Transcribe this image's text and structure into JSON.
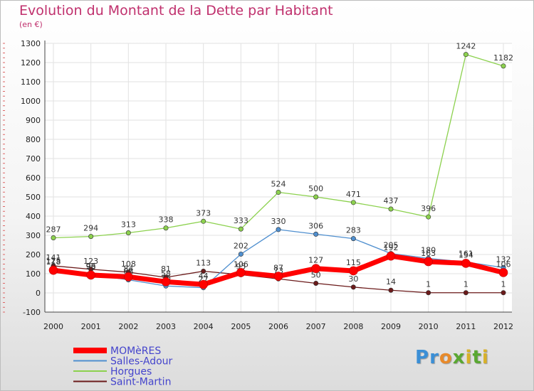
{
  "title": "Evolution du Montant de la Dette par Habitant",
  "subtitle": "(en €)",
  "logo": {
    "letters": [
      {
        "ch": "P",
        "color": "#3b8fd6"
      },
      {
        "ch": "r",
        "color": "#3b8fd6"
      },
      {
        "ch": "o",
        "color": "#e88a2a"
      },
      {
        "ch": "x",
        "color": "#5aa832"
      },
      {
        "ch": "i",
        "color": "#d8b12a"
      },
      {
        "ch": "t",
        "color": "#5aa832"
      },
      {
        "ch": "i",
        "color": "#d8b12a"
      }
    ]
  },
  "chart_data": {
    "type": "line",
    "title": "Evolution du Montant de la Dette par Habitant",
    "ylabel": "(en €)",
    "ylim": [
      -100,
      1300
    ],
    "yticks": [
      -100,
      0,
      100,
      200,
      300,
      400,
      500,
      600,
      700,
      800,
      900,
      1000,
      1100,
      1200,
      1300
    ],
    "x": [
      "2000",
      "2001",
      "2002",
      "2003",
      "2004",
      "2005",
      "2006",
      "2007",
      "2008",
      "2009",
      "2010",
      "2011",
      "2012"
    ],
    "grid": true,
    "legend": "bottom-left",
    "series": [
      {
        "name": "Saint-Martin",
        "color": "#6b1a1a",
        "width": 1.3,
        "values": [
          141,
          123,
          108,
          81,
          113,
          95,
          73,
          50,
          30,
          14,
          1,
          1,
          1
        ],
        "labels": [
          "141",
          "123",
          "108",
          "81",
          "113",
          "95",
          "73",
          "50",
          "30",
          "14",
          "1",
          "1",
          "1"
        ]
      },
      {
        "name": "Horgues",
        "color": "#8cd14e",
        "width": 1.3,
        "values": [
          287,
          294,
          313,
          338,
          373,
          333,
          524,
          500,
          471,
          437,
          396,
          1242,
          1182
        ],
        "labels": [
          "287",
          "294",
          "313",
          "338",
          "373",
          "333",
          "524",
          "500",
          "471",
          "437",
          "396",
          "1242",
          "1182"
        ]
      },
      {
        "name": "Salles-Adour",
        "color": "#4f8fcf",
        "width": 1.3,
        "values": [
          125,
          96,
          68,
          36,
          27,
          202,
          330,
          306,
          283,
          205,
          180,
          161,
          132
        ],
        "labels": [
          "125",
          "96",
          "68",
          "36",
          "27",
          "202",
          "330",
          "306",
          "283",
          "205",
          "180",
          "161",
          "132"
        ]
      },
      {
        "name": "MOMèRES",
        "color": "#ff0000",
        "width": 7,
        "values": [
          118,
          93,
          84,
          58,
          44,
          106,
          87,
          127,
          115,
          192,
          163,
          154,
          106
        ],
        "labels": [
          "118",
          "93",
          "84",
          "58",
          "44",
          "106",
          "87",
          "127",
          "115",
          "192",
          "163",
          "154",
          "106"
        ]
      }
    ],
    "legend_order": [
      "MOMèRES",
      "Salles-Adour",
      "Horgues",
      "Saint-Martin"
    ]
  }
}
